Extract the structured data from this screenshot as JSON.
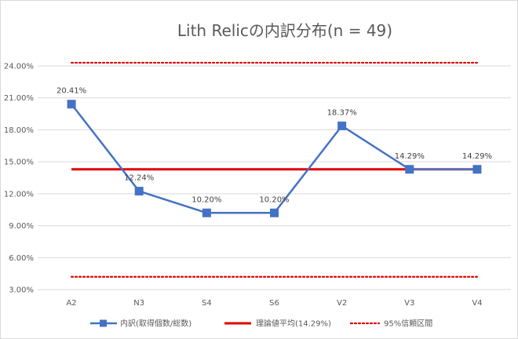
{
  "chart_data": {
    "type": "line",
    "title": "Lith Relicの内訳分布(n = 49)",
    "categories": [
      "A2",
      "N3",
      "S4",
      "S6",
      "V2",
      "V3",
      "V4"
    ],
    "ylim": [
      3.0,
      24.0
    ],
    "yticks": [
      3.0,
      6.0,
      9.0,
      12.0,
      15.0,
      18.0,
      21.0,
      24.0
    ],
    "ytick_labels": [
      "3.00%",
      "6.00%",
      "9.00%",
      "12.00%",
      "15.00%",
      "18.00%",
      "21.00%",
      "24.00%"
    ],
    "grid": true,
    "legend_position": "bottom",
    "series": [
      {
        "name": "内訳(取得個数/総数)",
        "values": [
          20.41,
          12.24,
          10.2,
          10.2,
          18.37,
          14.29,
          14.29
        ],
        "labels": [
          "20.41%",
          "12.24%",
          "10.20%",
          "10.20%",
          "18.37%",
          "14.29%",
          "14.29%"
        ],
        "color": "#4472c4",
        "style": "solid-with-square-markers"
      },
      {
        "name": "理論値平均(14.29%)",
        "value": 14.29,
        "color": "#e00000",
        "style": "solid-thick"
      },
      {
        "name": "95%信頼区間",
        "lower": 4.2,
        "upper": 24.3,
        "color": "#e00000",
        "style": "dotted"
      }
    ]
  }
}
